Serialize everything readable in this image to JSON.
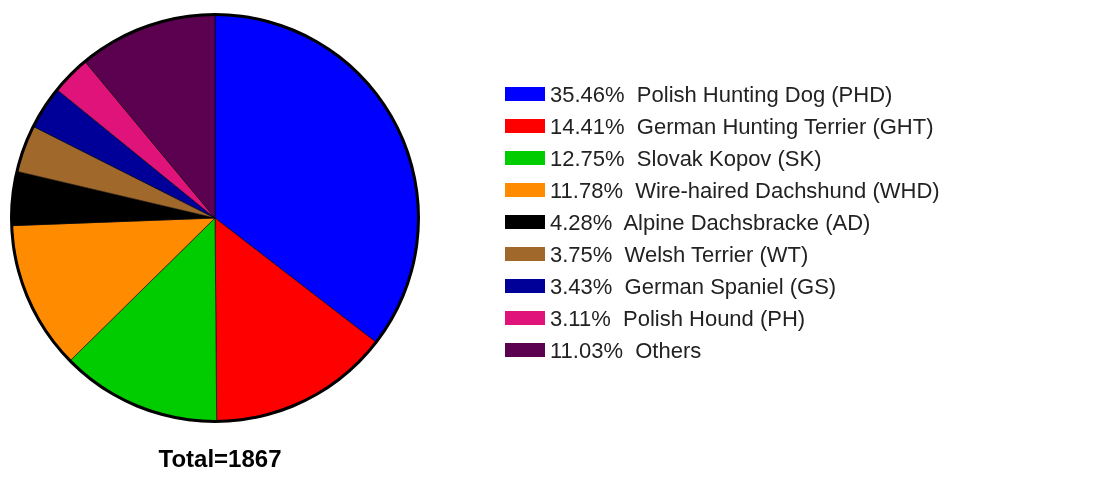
{
  "chart_data": {
    "type": "pie",
    "title": "Total=1867",
    "categories": [
      "35.46%  Polish Hunting Dog (PHD)",
      "14.41%  German Hunting Terrier (GHT)",
      "12.75%  Slovak Kopov (SK)",
      "11.78%  Wire-haired Dachshund (WHD)",
      "4.28%  Alpine Dachsbracke (AD)",
      "3.75%  Welsh Terrier (WT)",
      "3.43%  German Spaniel (GS)",
      "3.11%  Polish Hound (PH)",
      "11.03%  Others"
    ],
    "values": [
      35.46,
      14.41,
      12.75,
      11.78,
      4.28,
      3.75,
      3.43,
      3.11,
      11.03
    ],
    "colors": [
      "#0000ff",
      "#ff0000",
      "#00cc00",
      "#ff8c00",
      "#000000",
      "#a0682a",
      "#000099",
      "#e0137a",
      "#5c0050"
    ],
    "legend": "right"
  }
}
